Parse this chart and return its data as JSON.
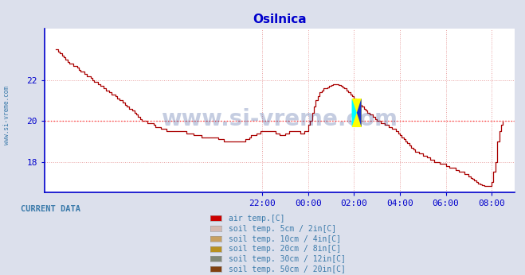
{
  "title": "Osilnica",
  "title_color": "#0000cc",
  "bg_color": "#dce0ec",
  "plot_bg_color": "#ffffff",
  "line_color": "#aa0000",
  "line_width": 1.0,
  "xlim_hours": [
    -11.5,
    9.0
  ],
  "ylim": [
    16.5,
    24.5
  ],
  "yticks": [
    18,
    20,
    22
  ],
  "xticks_labels": [
    "22:00",
    "00:00",
    "02:00",
    "04:00",
    "06:00",
    "08:00"
  ],
  "xticks_positions": [
    -2,
    0,
    2,
    4,
    6,
    8
  ],
  "hline_y": 20.0,
  "hline_color": "#ff4444",
  "grid_color": "#e8a0a0",
  "axis_color": "#0000cc",
  "watermark": "www.si-vreme.com",
  "watermark_color": "#1a3a8a",
  "watermark_alpha": 0.25,
  "sidebar_text": "www.si-vreme.com",
  "sidebar_color": "#3a7aaa",
  "current_data_label": "CURRENT DATA",
  "current_data_color": "#3a7aaa",
  "legend_entries": [
    {
      "label": "air temp.[C]",
      "color": "#cc0000"
    },
    {
      "label": "soil temp. 5cm / 2in[C]",
      "color": "#d4b8b0"
    },
    {
      "label": "soil temp. 10cm / 4in[C]",
      "color": "#c8a060"
    },
    {
      "label": "soil temp. 20cm / 8in[C]",
      "color": "#b89020"
    },
    {
      "label": "soil temp. 30cm / 12in[C]",
      "color": "#808878"
    },
    {
      "label": "soil temp. 50cm / 20in[C]",
      "color": "#804010"
    }
  ],
  "air_temp_x": [
    -11.0,
    -10.92,
    -10.83,
    -10.75,
    -10.67,
    -10.58,
    -10.5,
    -10.42,
    -10.33,
    -10.25,
    -10.17,
    -10.08,
    -10.0,
    -9.92,
    -9.83,
    -9.75,
    -9.67,
    -9.58,
    -9.5,
    -9.42,
    -9.33,
    -9.25,
    -9.17,
    -9.08,
    -9.0,
    -8.92,
    -8.83,
    -8.75,
    -8.67,
    -8.58,
    -8.5,
    -8.42,
    -8.33,
    -8.25,
    -8.17,
    -8.08,
    -8.0,
    -7.92,
    -7.83,
    -7.75,
    -7.67,
    -7.58,
    -7.5,
    -7.42,
    -7.33,
    -7.25,
    -7.17,
    -7.08,
    -7.0,
    -6.92,
    -6.83,
    -6.75,
    -6.67,
    -6.58,
    -6.5,
    -6.42,
    -6.33,
    -6.25,
    -6.17,
    -6.08,
    -6.0,
    -5.92,
    -5.83,
    -5.75,
    -5.67,
    -5.58,
    -5.5,
    -5.42,
    -5.33,
    -5.25,
    -5.17,
    -5.08,
    -5.0,
    -4.92,
    -4.83,
    -4.75,
    -4.67,
    -4.58,
    -4.5,
    -4.42,
    -4.33,
    -4.25,
    -4.17,
    -4.08,
    -4.0,
    -3.92,
    -3.83,
    -3.75,
    -3.67,
    -3.58,
    -3.5,
    -3.42,
    -3.33,
    -3.25,
    -3.17,
    -3.08,
    -3.0,
    -2.92,
    -2.83,
    -2.75,
    -2.67,
    -2.58,
    -2.5,
    -2.42,
    -2.33,
    -2.25,
    -2.17,
    -2.08,
    -2.0,
    -1.92,
    -1.83,
    -1.75,
    -1.67,
    -1.58,
    -1.5,
    -1.42,
    -1.33,
    -1.25,
    -1.17,
    -1.08,
    -1.0,
    -0.92,
    -0.83,
    -0.75,
    -0.67,
    -0.58,
    -0.5,
    -0.42,
    -0.33,
    -0.25,
    -0.17,
    -0.08,
    0.0,
    0.08,
    0.17,
    0.25,
    0.33,
    0.42,
    0.5,
    0.58,
    0.67,
    0.75,
    0.83,
    0.92,
    1.0,
    1.08,
    1.17,
    1.25,
    1.33,
    1.42,
    1.5,
    1.58,
    1.67,
    1.75,
    1.83,
    1.92,
    2.0,
    2.08,
    2.17,
    2.25,
    2.33,
    2.42,
    2.5,
    2.58,
    2.67,
    2.75,
    2.83,
    2.92,
    3.0,
    3.08,
    3.17,
    3.25,
    3.33,
    3.42,
    3.5,
    3.58,
    3.67,
    3.75,
    3.83,
    3.92,
    4.0,
    4.08,
    4.17,
    4.25,
    4.33,
    4.42,
    4.5,
    4.58,
    4.67,
    4.75,
    4.83,
    4.92,
    5.0,
    5.08,
    5.17,
    5.25,
    5.33,
    5.42,
    5.5,
    5.58,
    5.67,
    5.75,
    5.83,
    5.92,
    6.0,
    6.08,
    6.17,
    6.25,
    6.33,
    6.42,
    6.5,
    6.58,
    6.67,
    6.75,
    6.83,
    6.92,
    7.0,
    7.08,
    7.17,
    7.25,
    7.33,
    7.42,
    7.5,
    7.58,
    7.67,
    7.75,
    7.83,
    7.92,
    8.0,
    8.08,
    8.17,
    8.25,
    8.33,
    8.42,
    8.5
  ],
  "air_temp_y": [
    23.5,
    23.4,
    23.3,
    23.2,
    23.1,
    23.0,
    22.9,
    22.8,
    22.8,
    22.7,
    22.7,
    22.6,
    22.5,
    22.4,
    22.4,
    22.3,
    22.2,
    22.2,
    22.1,
    22.0,
    21.9,
    21.9,
    21.8,
    21.7,
    21.7,
    21.6,
    21.5,
    21.5,
    21.4,
    21.3,
    21.3,
    21.2,
    21.1,
    21.0,
    21.0,
    20.9,
    20.8,
    20.7,
    20.6,
    20.6,
    20.5,
    20.4,
    20.3,
    20.2,
    20.1,
    20.0,
    20.0,
    20.0,
    19.9,
    19.9,
    19.9,
    19.8,
    19.7,
    19.7,
    19.7,
    19.6,
    19.6,
    19.6,
    19.5,
    19.5,
    19.5,
    19.5,
    19.5,
    19.5,
    19.5,
    19.5,
    19.5,
    19.5,
    19.4,
    19.4,
    19.4,
    19.4,
    19.3,
    19.3,
    19.3,
    19.3,
    19.2,
    19.2,
    19.2,
    19.2,
    19.2,
    19.2,
    19.2,
    19.2,
    19.2,
    19.1,
    19.1,
    19.1,
    19.0,
    19.0,
    19.0,
    19.0,
    19.0,
    19.0,
    19.0,
    19.0,
    19.0,
    19.0,
    19.0,
    19.1,
    19.1,
    19.2,
    19.3,
    19.3,
    19.3,
    19.4,
    19.4,
    19.5,
    19.5,
    19.5,
    19.5,
    19.5,
    19.5,
    19.5,
    19.5,
    19.4,
    19.4,
    19.3,
    19.3,
    19.3,
    19.4,
    19.4,
    19.5,
    19.5,
    19.5,
    19.5,
    19.5,
    19.5,
    19.4,
    19.4,
    19.5,
    19.5,
    19.8,
    20.0,
    20.4,
    20.7,
    21.0,
    21.2,
    21.4,
    21.5,
    21.6,
    21.6,
    21.65,
    21.7,
    21.75,
    21.8,
    21.8,
    21.8,
    21.75,
    21.7,
    21.65,
    21.6,
    21.5,
    21.4,
    21.3,
    21.2,
    21.1,
    21.0,
    20.9,
    20.8,
    20.7,
    20.6,
    20.5,
    20.4,
    20.3,
    20.3,
    20.2,
    20.1,
    20.0,
    20.0,
    19.9,
    19.9,
    19.8,
    19.8,
    19.7,
    19.7,
    19.6,
    19.6,
    19.5,
    19.4,
    19.3,
    19.2,
    19.1,
    19.0,
    18.9,
    18.8,
    18.7,
    18.6,
    18.5,
    18.5,
    18.4,
    18.4,
    18.3,
    18.3,
    18.2,
    18.2,
    18.1,
    18.1,
    18.0,
    18.0,
    18.0,
    17.9,
    17.9,
    17.9,
    17.8,
    17.8,
    17.7,
    17.7,
    17.7,
    17.6,
    17.6,
    17.5,
    17.5,
    17.5,
    17.4,
    17.4,
    17.3,
    17.2,
    17.15,
    17.1,
    17.0,
    16.95,
    16.9,
    16.85,
    16.8,
    16.8,
    16.8,
    16.8,
    17.0,
    17.5,
    18.0,
    19.0,
    19.5,
    19.8,
    20.0
  ]
}
